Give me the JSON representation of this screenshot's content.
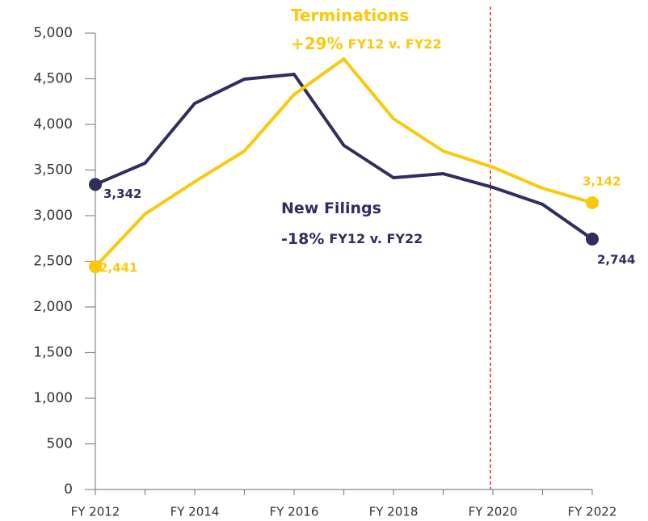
{
  "chart_data": {
    "type": "line",
    "categories": [
      "FY 2012",
      null,
      "FY 2014",
      null,
      "FY 2016",
      null,
      "FY 2018",
      null,
      "FY 2020",
      null,
      "FY 2022"
    ],
    "series": [
      {
        "name": "New Filings",
        "color": "#2f2e5e",
        "values": [
          3342,
          3575,
          4230,
          4496,
          4549,
          3770,
          3416,
          3460,
          3310,
          3124,
          2744
        ],
        "value_labels": [
          "3,342",
          null,
          null,
          null,
          null,
          null,
          null,
          null,
          null,
          null,
          "2,744"
        ]
      },
      {
        "name": "Terminations",
        "color": "#fcc80d",
        "values": [
          2441,
          3018,
          3372,
          3708,
          4327,
          4717,
          4062,
          3708,
          3531,
          3301,
          3142
        ],
        "value_labels": [
          "2,441",
          null,
          null,
          null,
          null,
          null,
          null,
          null,
          null,
          null,
          "3,142"
        ]
      }
    ],
    "annotations": [
      [
        "Terminations"
      ],
      [
        "+29%",
        "FY12 v. FY22"
      ],
      [
        "New Filings"
      ],
      [
        "-18%",
        "FY12 v. FY22"
      ]
    ],
    "ylim": [
      0,
      5000
    ],
    "yticks": [
      0,
      500,
      {
        "value": 1000,
        "label": "1,000"
      },
      {
        "value": 1500,
        "label": "1,500"
      },
      {
        "value": 2000,
        "label": "2,000"
      },
      {
        "value": 2500,
        "label": "2,500"
      },
      {
        "value": 3000,
        "label": "3,000"
      },
      {
        "value": 3500,
        "label": "3,500"
      },
      {
        "value": 4000,
        "label": "4,000"
      },
      {
        "value": 4500,
        "label": "4,500"
      },
      {
        "value": 5000,
        "label": "5,000"
      }
    ],
    "grid": false
  }
}
